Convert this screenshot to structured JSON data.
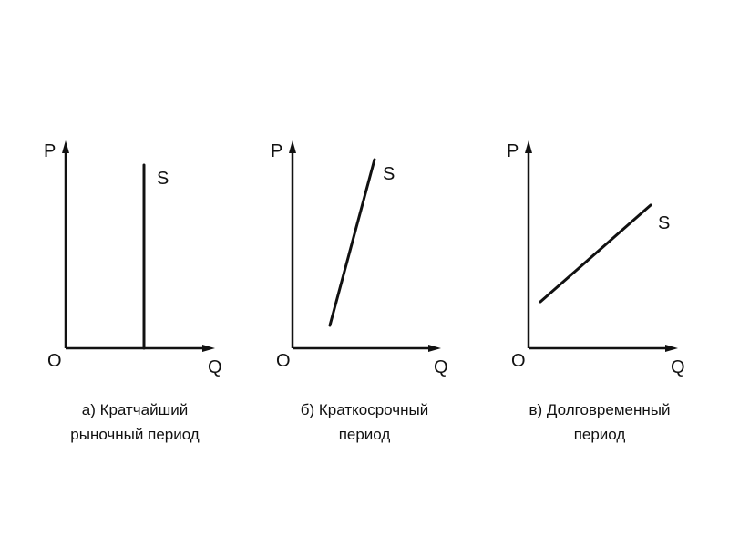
{
  "diagram": {
    "panels": [
      {
        "id": "a",
        "y_axis_label": "P",
        "x_axis_label": "Q",
        "origin_label": "O",
        "curve_label": "S",
        "caption_lines": [
          "а) Кратчайший",
          "рыночный период"
        ],
        "curve_type": "vertical"
      },
      {
        "id": "b",
        "y_axis_label": "P",
        "x_axis_label": "Q",
        "origin_label": "O",
        "curve_label": "S",
        "caption_lines": [
          "б) Краткосрочный",
          "период"
        ],
        "curve_type": "steep"
      },
      {
        "id": "c",
        "y_axis_label": "P",
        "x_axis_label": "Q",
        "origin_label": "O",
        "curve_label": "S",
        "caption_lines": [
          "в) Долговременный",
          "период"
        ],
        "curve_type": "flat"
      }
    ]
  }
}
